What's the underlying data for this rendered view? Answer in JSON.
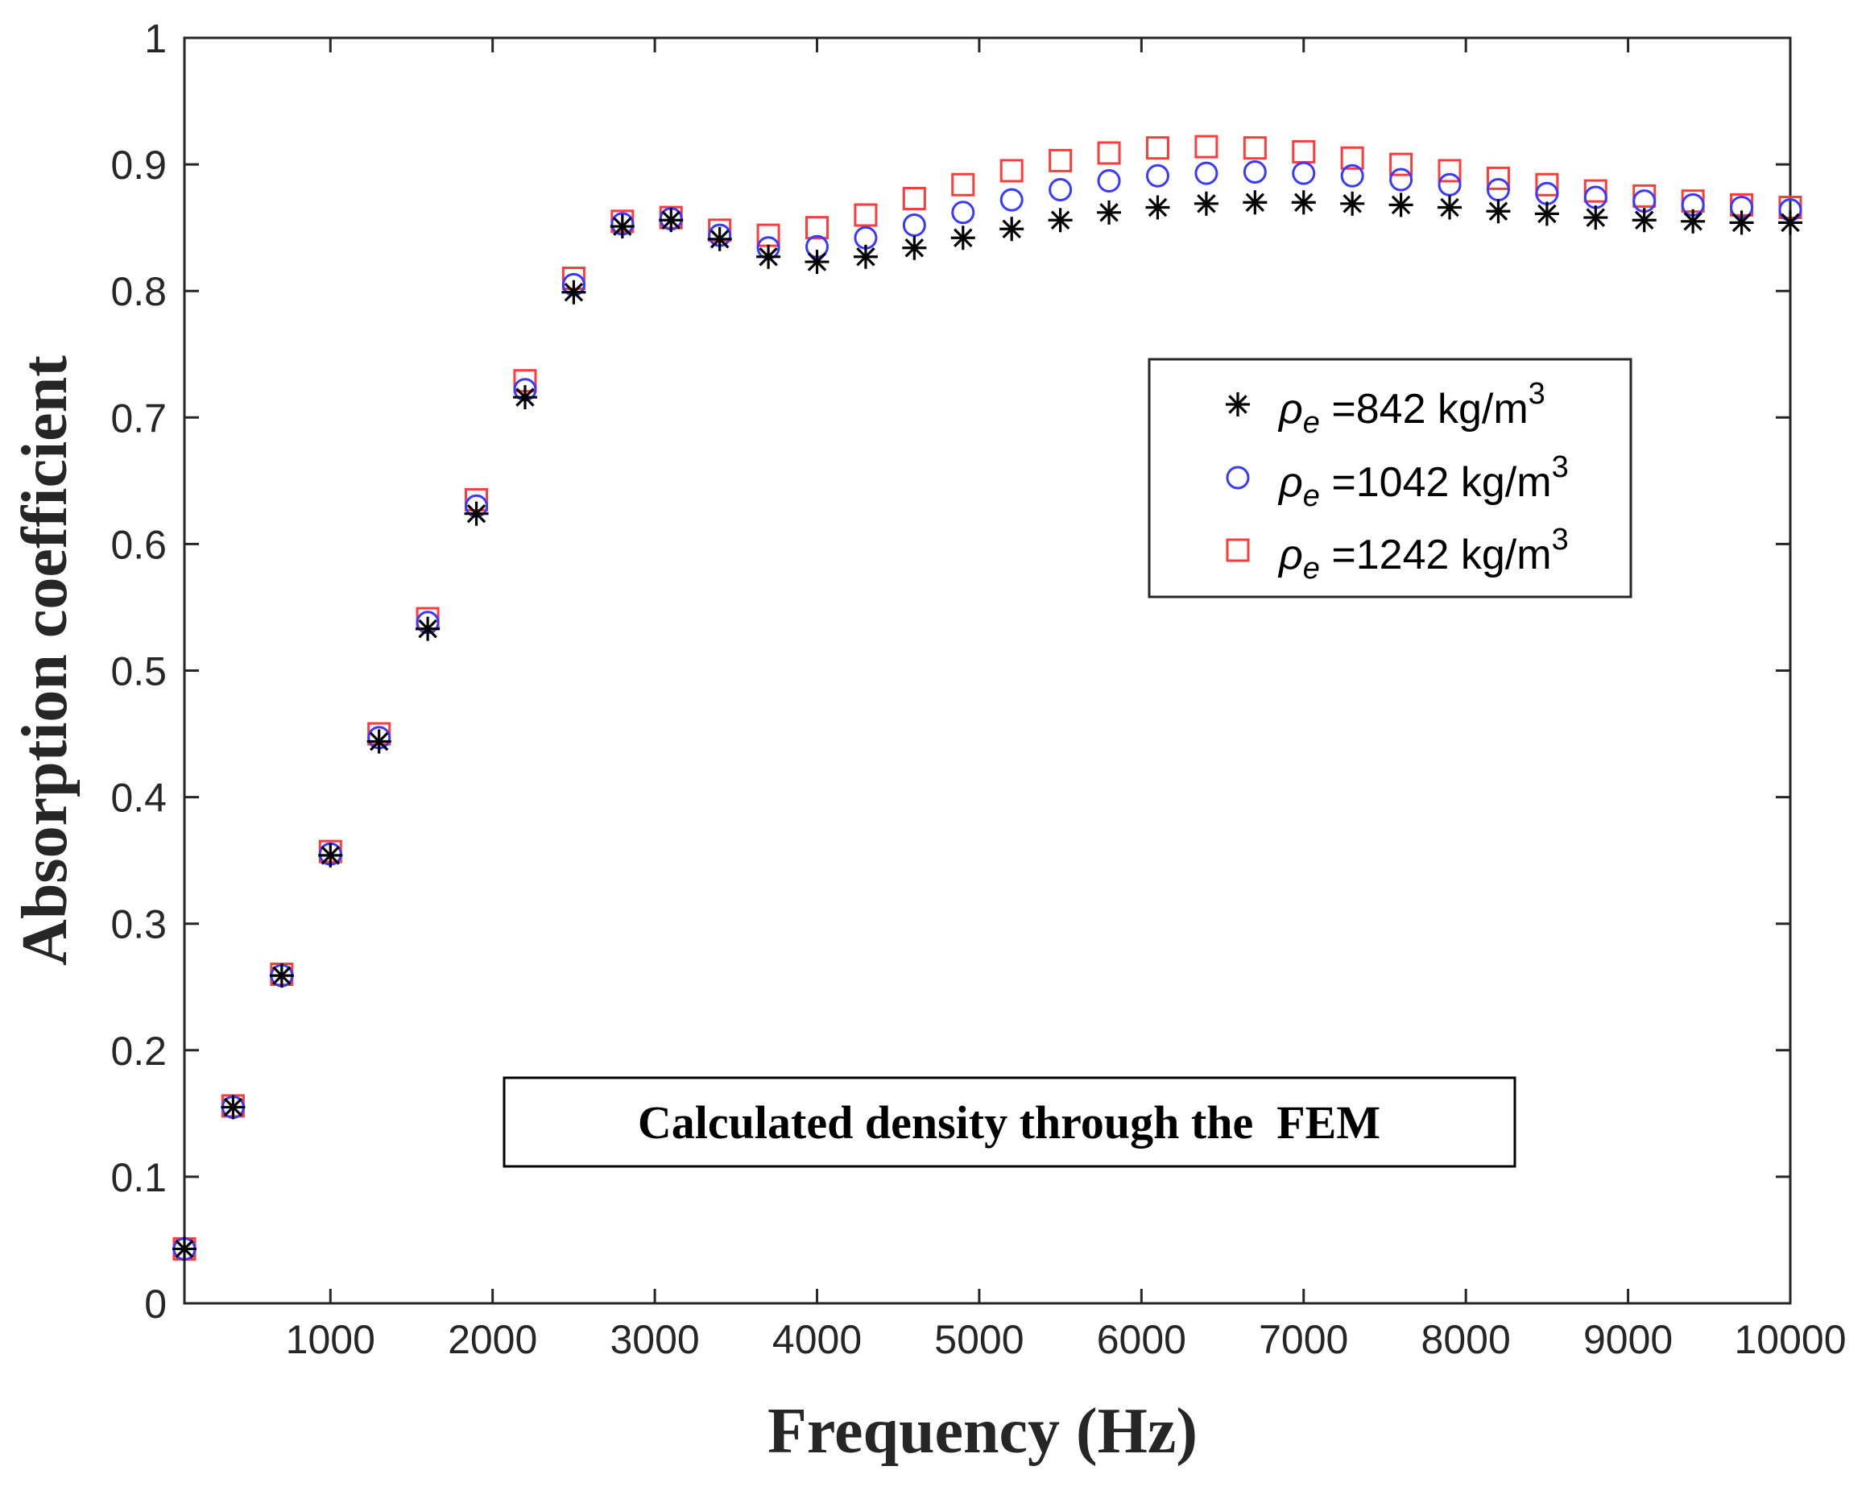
{
  "chart_data": {
    "type": "scatter",
    "title": "",
    "xlabel": "Frequency (Hz)",
    "ylabel": "Absorption coefficient",
    "xlim": [
      100,
      10000
    ],
    "ylim": [
      0,
      1
    ],
    "xticks": [
      1000,
      2000,
      3000,
      4000,
      5000,
      6000,
      7000,
      8000,
      9000,
      10000
    ],
    "yticks": [
      0,
      0.1,
      0.2,
      0.3,
      0.4,
      0.5,
      0.6,
      0.7,
      0.8,
      0.9,
      1
    ],
    "grid": false,
    "legend_position": "right",
    "annotation": "Calculated density through the  FEM",
    "x": [
      100,
      400,
      700,
      1000,
      1300,
      1600,
      1900,
      2200,
      2500,
      2800,
      3100,
      3400,
      3700,
      4000,
      4300,
      4600,
      4900,
      5200,
      5500,
      5800,
      6100,
      6400,
      6700,
      7000,
      7300,
      7600,
      7900,
      8200,
      8500,
      8800,
      9100,
      9400,
      9700,
      10000
    ],
    "series": [
      {
        "name": "ρe =842 kg/m3",
        "symbol": "ρ",
        "subscript": "e",
        "label_text": " =842 kg/m",
        "superscript": "3",
        "marker": "asterisk",
        "color": "#000000",
        "values": [
          0.043,
          0.155,
          0.259,
          0.354,
          0.444,
          0.533,
          0.624,
          0.716,
          0.799,
          0.851,
          0.856,
          0.841,
          0.827,
          0.823,
          0.827,
          0.834,
          0.842,
          0.849,
          0.856,
          0.862,
          0.866,
          0.869,
          0.87,
          0.87,
          0.869,
          0.868,
          0.866,
          0.863,
          0.861,
          0.858,
          0.856,
          0.855,
          0.854,
          0.854
        ]
      },
      {
        "name": "ρe =1042 kg/m3",
        "symbol": "ρ",
        "subscript": "e",
        "label_text": " =1042 kg/m",
        "superscript": "3",
        "marker": "circle",
        "color": "#3a3aff",
        "values": [
          0.043,
          0.155,
          0.259,
          0.355,
          0.447,
          0.538,
          0.63,
          0.722,
          0.805,
          0.853,
          0.857,
          0.844,
          0.834,
          0.835,
          0.842,
          0.852,
          0.862,
          0.872,
          0.88,
          0.887,
          0.891,
          0.893,
          0.894,
          0.893,
          0.891,
          0.888,
          0.884,
          0.88,
          0.877,
          0.874,
          0.871,
          0.868,
          0.866,
          0.864
        ]
      },
      {
        "name": "ρe =1242 kg/m3",
        "symbol": "ρ",
        "subscript": "e",
        "label_text": " =1242 kg/m",
        "superscript": "3",
        "marker": "square",
        "color": "#ff3b3b",
        "values": [
          0.043,
          0.156,
          0.26,
          0.357,
          0.45,
          0.541,
          0.635,
          0.729,
          0.81,
          0.855,
          0.858,
          0.848,
          0.844,
          0.85,
          0.86,
          0.873,
          0.884,
          0.895,
          0.903,
          0.909,
          0.913,
          0.914,
          0.913,
          0.91,
          0.905,
          0.9,
          0.895,
          0.889,
          0.884,
          0.879,
          0.875,
          0.871,
          0.868,
          0.866
        ]
      }
    ]
  }
}
